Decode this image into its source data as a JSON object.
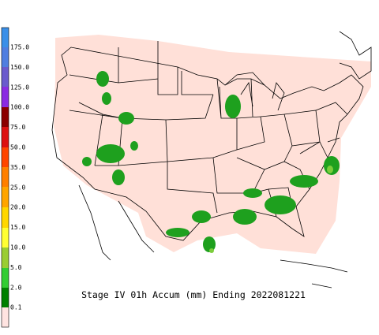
{
  "caption": "Stage IV 01h Accum (mm) Ending 2022081221",
  "legend": {
    "labels": [
      "175.0",
      "150.0",
      "125.0",
      "100.0",
      "75.0",
      "50.0",
      "35.0",
      "25.0",
      "20.0",
      "15.0",
      "10.0",
      "5.0",
      "2.0",
      "0.1"
    ]
  }
}
